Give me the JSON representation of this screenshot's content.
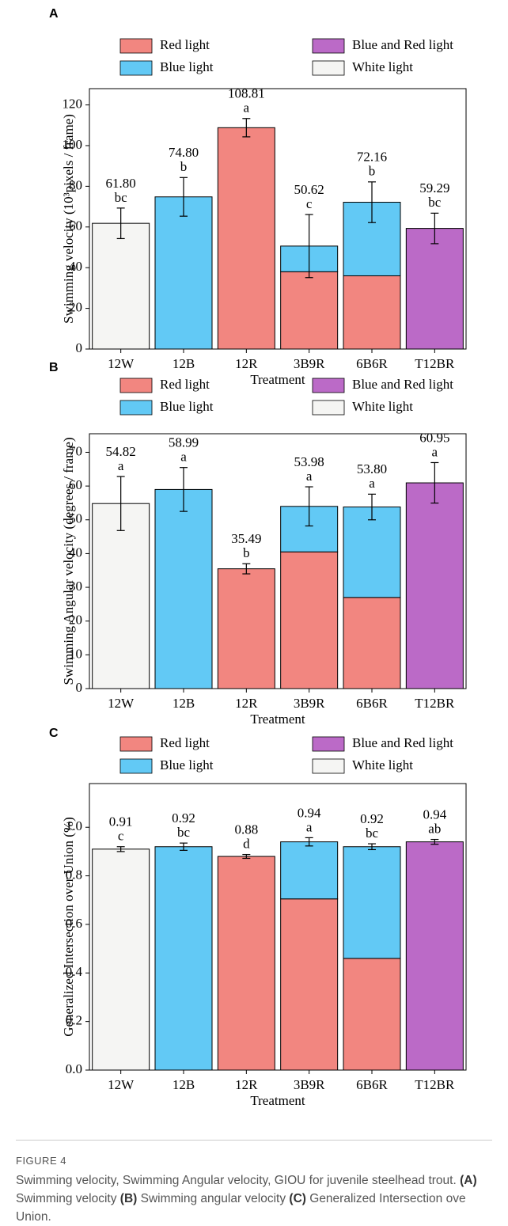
{
  "chart_data": [
    {
      "type": "stacked-bar",
      "panel": "A",
      "ylabel": "Swimming velocity  (10³pixels / frame)",
      "xlabel": "Treatment",
      "categories": [
        "12W",
        "12B",
        "12R",
        "3B9R",
        "6B6R",
        "T12BR"
      ],
      "series": [
        {
          "name": "Red light",
          "color": "#f28680",
          "values": [
            null,
            null,
            108.81,
            38,
            36,
            null
          ]
        },
        {
          "name": "Blue light",
          "color": "#62c9f5",
          "values": [
            null,
            74.8,
            null,
            12.62,
            36.16,
            null
          ]
        },
        {
          "name": "Blue and Red light",
          "color": "#bb6ac7",
          "values": [
            null,
            null,
            null,
            null,
            null,
            59.29
          ]
        },
        {
          "name": "White light",
          "color": "#f5f5f3",
          "values": [
            61.8,
            null,
            null,
            null,
            null,
            null
          ]
        }
      ],
      "totals": {
        "values": [
          61.8,
          74.8,
          108.81,
          50.62,
          72.16,
          59.29
        ],
        "value_labels": [
          "61.80",
          "74.80",
          "108.81",
          "50.62",
          "72.16",
          "59.29"
        ],
        "errors": [
          7.5,
          9.5,
          4.5,
          15.5,
          10,
          7.5
        ],
        "letters": [
          "bc",
          "b",
          "a",
          "c",
          "b",
          "bc"
        ]
      },
      "ylim": [
        0,
        128
      ],
      "yticks": [
        0,
        20,
        40,
        60,
        80,
        100,
        120
      ]
    },
    {
      "type": "stacked-bar",
      "panel": "B",
      "ylabel": "Swimming Angular velocity  (degrees / frame)",
      "xlabel": "Treatment",
      "categories": [
        "12W",
        "12B",
        "12R",
        "3B9R",
        "6B6R",
        "T12BR"
      ],
      "series": [
        {
          "name": "Red light",
          "color": "#f28680",
          "values": [
            null,
            null,
            35.49,
            40.5,
            27,
            null
          ]
        },
        {
          "name": "Blue light",
          "color": "#62c9f5",
          "values": [
            null,
            58.99,
            null,
            13.48,
            26.8,
            null
          ]
        },
        {
          "name": "Blue and Red light",
          "color": "#bb6ac7",
          "values": [
            null,
            null,
            null,
            null,
            null,
            60.95
          ]
        },
        {
          "name": "White light",
          "color": "#f5f5f3",
          "values": [
            54.82,
            null,
            null,
            null,
            null,
            null
          ]
        }
      ],
      "totals": {
        "values": [
          54.82,
          58.99,
          35.49,
          53.98,
          53.8,
          60.95
        ],
        "value_labels": [
          "54.82",
          "58.99",
          "35.49",
          "53.98",
          "53.80",
          "60.95"
        ],
        "errors": [
          8,
          6.5,
          1.5,
          5.8,
          3.8,
          6
        ],
        "letters": [
          "a",
          "a",
          "b",
          "a",
          "a",
          "a"
        ]
      },
      "ylim": [
        0,
        75.5
      ],
      "yticks": [
        0,
        10,
        20,
        30,
        40,
        50,
        60,
        70
      ]
    },
    {
      "type": "stacked-bar",
      "panel": "C",
      "ylabel": "Generalized Intersection over Union  (%)",
      "xlabel": "Treatment",
      "categories": [
        "12W",
        "12B",
        "12R",
        "3B9R",
        "6B6R",
        "T12BR"
      ],
      "series": [
        {
          "name": "Red light",
          "color": "#f28680",
          "values": [
            null,
            null,
            0.88,
            0.705,
            0.46,
            null
          ]
        },
        {
          "name": "Blue light",
          "color": "#62c9f5",
          "values": [
            null,
            0.92,
            null,
            0.235,
            0.46,
            null
          ]
        },
        {
          "name": "Blue and Red light",
          "color": "#bb6ac7",
          "values": [
            null,
            null,
            null,
            null,
            null,
            0.94
          ]
        },
        {
          "name": "White light",
          "color": "#f5f5f3",
          "values": [
            0.91,
            null,
            null,
            null,
            null,
            null
          ]
        }
      ],
      "totals": {
        "values": [
          0.91,
          0.92,
          0.88,
          0.94,
          0.92,
          0.94
        ],
        "errors": [
          0.01,
          0.015,
          0.008,
          0.017,
          0.012,
          0.01
        ],
        "letters": [
          "c",
          "bc",
          "d",
          "a",
          "bc",
          "ab"
        ]
      },
      "ylim": [
        0,
        1.18
      ],
      "yticks": [
        {
          "value": 0,
          "label": "0.0"
        },
        0.2,
        0.4,
        0.6,
        0.8,
        {
          "value": 1,
          "label": "1.0"
        }
      ]
    }
  ],
  "caption": {
    "label": "FIGURE 4",
    "parts": [
      {
        "text": "Swimming velocity, Swimming Angular velocity, GIOU for juvenile steelhead trout. "
      },
      {
        "text": "(A)",
        "bold": true
      },
      {
        "text": " Swimming velocity "
      },
      {
        "text": "(B)",
        "bold": true
      },
      {
        "text": " Swimming angular velocity "
      },
      {
        "text": "(C)",
        "bold": true
      },
      {
        "text": " Generalized Intersection ove Union."
      }
    ]
  }
}
